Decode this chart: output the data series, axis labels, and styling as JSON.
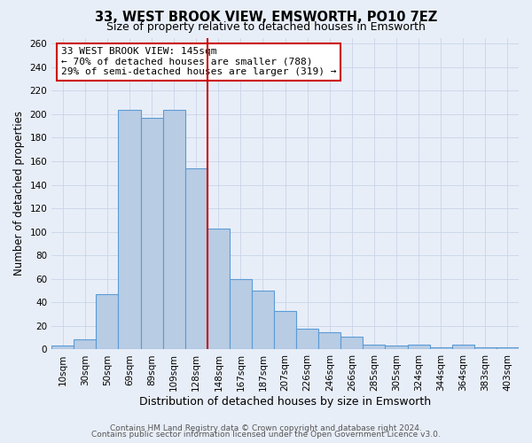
{
  "title": "33, WEST BROOK VIEW, EMSWORTH, PO10 7EZ",
  "subtitle": "Size of property relative to detached houses in Emsworth",
  "xlabel": "Distribution of detached houses by size in Emsworth",
  "ylabel": "Number of detached properties",
  "bar_labels": [
    "10sqm",
    "30sqm",
    "50sqm",
    "69sqm",
    "89sqm",
    "109sqm",
    "128sqm",
    "148sqm",
    "167sqm",
    "187sqm",
    "207sqm",
    "226sqm",
    "246sqm",
    "266sqm",
    "285sqm",
    "305sqm",
    "324sqm",
    "344sqm",
    "364sqm",
    "383sqm",
    "403sqm"
  ],
  "bar_values": [
    3,
    9,
    47,
    204,
    197,
    204,
    154,
    103,
    60,
    50,
    33,
    18,
    15,
    11,
    4,
    3,
    4,
    2,
    4,
    2,
    2
  ],
  "bar_color": "#b8cce4",
  "bar_edge_color": "#5b9bd5",
  "vline_color": "#cc0000",
  "annotation_lines": [
    "33 WEST BROOK VIEW: 145sqm",
    "← 70% of detached houses are smaller (788)",
    "29% of semi-detached houses are larger (319) →"
  ],
  "annotation_box_color": "#ffffff",
  "annotation_box_edge_color": "#cc0000",
  "ylim": [
    0,
    265
  ],
  "yticks": [
    0,
    20,
    40,
    60,
    80,
    100,
    120,
    140,
    160,
    180,
    200,
    220,
    240,
    260
  ],
  "grid_color": "#c8d4e8",
  "background_color": "#e8eef8",
  "footer_lines": [
    "Contains HM Land Registry data © Crown copyright and database right 2024.",
    "Contains public sector information licensed under the Open Government Licence v3.0."
  ],
  "title_fontsize": 10.5,
  "subtitle_fontsize": 9,
  "xlabel_fontsize": 9,
  "ylabel_fontsize": 8.5,
  "tick_fontsize": 7.5,
  "annotation_fontsize": 8,
  "footer_fontsize": 6.5
}
